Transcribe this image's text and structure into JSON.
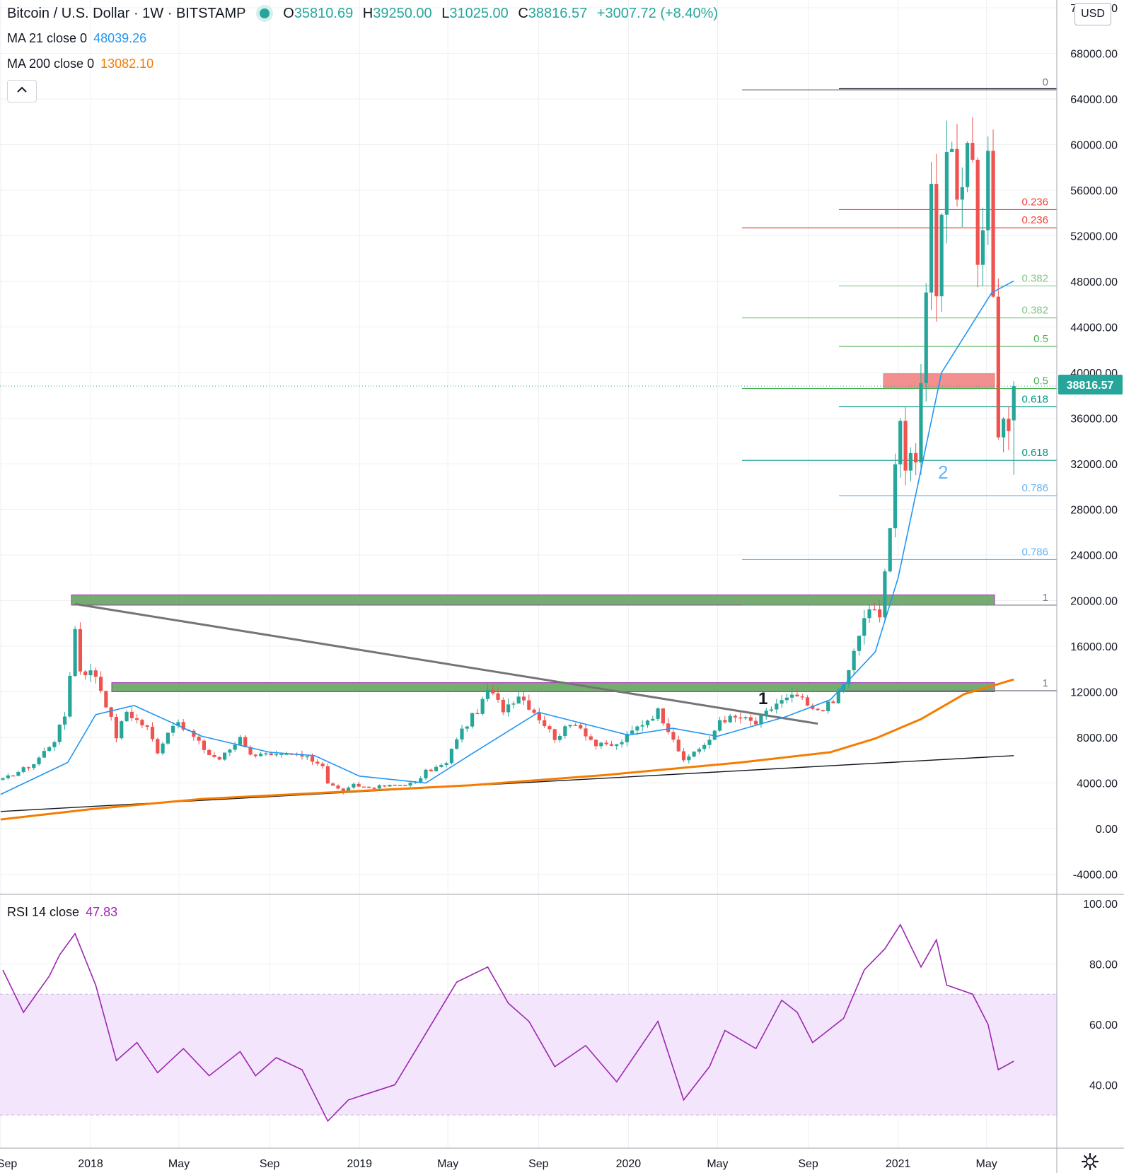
{
  "header": {
    "symbol": "Bitcoin / U.S. Dollar",
    "interval": "1W",
    "exchange": "BITSTAMP",
    "ohlc": {
      "o_label": "O",
      "o": "35810.69",
      "h_label": "H",
      "h": "39250.00",
      "l_label": "L",
      "l": "31025.00",
      "c_label": "C",
      "c": "38816.57",
      "change": "+3007.72 (+8.40%)"
    },
    "collapse_icon": "chevron-up-icon"
  },
  "indicators": {
    "ma21": {
      "label": "MA 21 close 0",
      "value": "48039.26",
      "color": "#2196f3"
    },
    "ma200": {
      "label": "MA 200 close 0",
      "value": "13082.10",
      "color": "#f57c00"
    },
    "rsi": {
      "label": "RSI 14 close",
      "value": "47.83",
      "color": "#9c27b0"
    }
  },
  "price_axis": {
    "currency": "USD",
    "ticks": [
      "72000.00",
      "68000.00",
      "64000.00",
      "60000.00",
      "56000.00",
      "52000.00",
      "48000.00",
      "44000.00",
      "40000.00",
      "36000.00",
      "32000.00",
      "28000.00",
      "24000.00",
      "20000.00",
      "16000.00",
      "12000.00",
      "8000.00",
      "4000.00",
      "0.00",
      "-4000.00"
    ],
    "last_price_label": "38816.57"
  },
  "rsi_axis": {
    "ticks": [
      "100.00",
      "80.00",
      "60.00",
      "40.00"
    ]
  },
  "time_axis": {
    "labels": [
      "Sep",
      "2018",
      "May",
      "Sep",
      "2019",
      "May",
      "Sep",
      "2020",
      "May",
      "Sep",
      "2021",
      "May"
    ]
  },
  "annotations": {
    "wave_1": "1",
    "wave_2": "2",
    "fib_set_a": [
      "0",
      "0.236",
      "0.382",
      "0.5",
      "0.618",
      "0.786",
      "1"
    ],
    "fib_set_b": [
      "0.236",
      "0.382",
      "0.5",
      "0.618",
      "0.786",
      "1"
    ]
  },
  "colors": {
    "up": "#26a69a",
    "down": "#ef5350",
    "grid": "#eef0f3",
    "rsi_band": "#f3e5fc",
    "support_zone": "#6ea96a",
    "resistance_zone": "#f28b8b"
  },
  "chart_data": {
    "type": "candlestick",
    "title": "Bitcoin / U.S. Dollar, 1W, BITSTAMP",
    "timeframe": "1W",
    "x_range": [
      "2017-09",
      "2021-06"
    ],
    "ylim": [
      -6000,
      72000
    ],
    "grid": true,
    "last_close": 38816.57,
    "weekly_close_path": [
      [
        "2017-09-04",
        4300
      ],
      [
        "2017-10-16",
        5700
      ],
      [
        "2017-11-13",
        7800
      ],
      [
        "2017-11-27",
        9900
      ],
      [
        "2017-12-11",
        17500
      ],
      [
        "2017-12-18",
        14000
      ],
      [
        "2018-01-08",
        13500
      ],
      [
        "2018-01-22",
        11000
      ],
      [
        "2018-02-05",
        8100
      ],
      [
        "2018-02-19",
        10300
      ],
      [
        "2018-03-05",
        9500
      ],
      [
        "2018-03-19",
        8800
      ],
      [
        "2018-04-02",
        6800
      ],
      [
        "2018-04-23",
        9300
      ],
      [
        "2018-05-14",
        8500
      ],
      [
        "2018-05-28",
        7500
      ],
      [
        "2018-06-11",
        6500
      ],
      [
        "2018-06-25",
        6100
      ],
      [
        "2018-07-16",
        7400
      ],
      [
        "2018-07-23",
        8200
      ],
      [
        "2018-08-06",
        6400
      ],
      [
        "2018-08-20",
        6700
      ],
      [
        "2018-09-03",
        6300
      ],
      [
        "2018-10-08",
        6500
      ],
      [
        "2018-11-12",
        5600
      ],
      [
        "2018-11-19",
        4000
      ],
      [
        "2018-12-10",
        3200
      ],
      [
        "2018-12-24",
        3800
      ],
      [
        "2019-01-14",
        3600
      ],
      [
        "2019-02-18",
        3800
      ],
      [
        "2019-03-18",
        4000
      ],
      [
        "2019-04-01",
        5000
      ],
      [
        "2019-04-29",
        5700
      ],
      [
        "2019-05-13",
        8000
      ],
      [
        "2019-06-17",
        11000
      ],
      [
        "2019-06-24",
        12200
      ],
      [
        "2019-07-15",
        10500
      ],
      [
        "2019-08-05",
        11800
      ],
      [
        "2019-08-26",
        10300
      ],
      [
        "2019-09-23",
        8000
      ],
      [
        "2019-10-21",
        9400
      ],
      [
        "2019-11-18",
        7300
      ],
      [
        "2019-12-16",
        7300
      ],
      [
        "2020-01-13",
        8900
      ],
      [
        "2020-02-10",
        10300
      ],
      [
        "2020-03-02",
        8000
      ],
      [
        "2020-03-16",
        5800
      ],
      [
        "2020-03-30",
        6800
      ],
      [
        "2020-04-20",
        7600
      ],
      [
        "2020-05-04",
        9600
      ],
      [
        "2020-06-01",
        9700
      ],
      [
        "2020-06-22",
        9200
      ],
      [
        "2020-07-20",
        11000
      ],
      [
        "2020-08-17",
        11600
      ],
      [
        "2020-09-07",
        10300
      ],
      [
        "2020-10-05",
        11000
      ],
      [
        "2020-10-26",
        13700
      ],
      [
        "2020-11-16",
        18600
      ],
      [
        "2020-12-07",
        19200
      ],
      [
        "2020-12-21",
        26500
      ],
      [
        "2021-01-04",
        35500
      ],
      [
        "2021-01-11",
        32300
      ],
      [
        "2021-01-25",
        33000
      ],
      [
        "2021-02-08",
        47100
      ],
      [
        "2021-02-15",
        57500
      ],
      [
        "2021-02-22",
        45200
      ],
      [
        "2021-03-08",
        59500
      ],
      [
        "2021-03-22",
        55800
      ],
      [
        "2021-04-05",
        59700
      ],
      [
        "2021-04-12",
        60000
      ],
      [
        "2021-04-19",
        48800
      ],
      [
        "2021-05-03",
        58000
      ],
      [
        "2021-05-10",
        46500
      ],
      [
        "2021-05-17",
        34700
      ],
      [
        "2021-05-31",
        35800
      ],
      [
        "2021-06-07",
        38816.57
      ]
    ],
    "series": [
      {
        "name": "MA 21 close 0",
        "color": "#2196f3",
        "points": [
          [
            "2017-09-01",
            3000
          ],
          [
            "2017-12-01",
            5800
          ],
          [
            "2018-01-08",
            10000
          ],
          [
            "2018-03-01",
            10800
          ],
          [
            "2018-06-01",
            8100
          ],
          [
            "2018-09-01",
            6700
          ],
          [
            "2018-11-01",
            6400
          ],
          [
            "2019-01-01",
            4600
          ],
          [
            "2019-04-01",
            4000
          ],
          [
            "2019-06-01",
            6500
          ],
          [
            "2019-09-01",
            10200
          ],
          [
            "2019-11-01",
            9200
          ],
          [
            "2020-01-01",
            8200
          ],
          [
            "2020-03-01",
            8800
          ],
          [
            "2020-05-01",
            8100
          ],
          [
            "2020-08-01",
            9800
          ],
          [
            "2020-10-01",
            11300
          ],
          [
            "2020-12-01",
            15500
          ],
          [
            "2021-01-01",
            22000
          ],
          [
            "2021-03-01",
            40000
          ],
          [
            "2021-05-08",
            47000
          ],
          [
            "2021-06-07",
            48039.26
          ]
        ]
      },
      {
        "name": "MA 200 close 0",
        "color": "#f57c00",
        "points": [
          [
            "2017-09-01",
            800
          ],
          [
            "2018-01-01",
            1700
          ],
          [
            "2018-06-01",
            2600
          ],
          [
            "2018-12-01",
            3200
          ],
          [
            "2019-06-01",
            3800
          ],
          [
            "2019-12-01",
            4700
          ],
          [
            "2020-06-01",
            5800
          ],
          [
            "2020-10-01",
            6700
          ],
          [
            "2020-12-01",
            7900
          ],
          [
            "2021-02-01",
            9600
          ],
          [
            "2021-04-01",
            11800
          ],
          [
            "2021-06-07",
            13082.1
          ]
        ]
      },
      {
        "name": "RSI 14 close",
        "color": "#9c27b0",
        "points": [
          [
            "2017-09-04",
            78
          ],
          [
            "2017-10-02",
            64
          ],
          [
            "2017-11-06",
            76
          ],
          [
            "2017-11-20",
            83
          ],
          [
            "2017-12-11",
            90
          ],
          [
            "2018-01-08",
            73
          ],
          [
            "2018-02-05",
            48
          ],
          [
            "2018-03-05",
            54
          ],
          [
            "2018-04-02",
            44
          ],
          [
            "2018-05-07",
            52
          ],
          [
            "2018-06-11",
            43
          ],
          [
            "2018-07-23",
            51
          ],
          [
            "2018-08-13",
            43
          ],
          [
            "2018-09-10",
            49
          ],
          [
            "2018-10-15",
            45
          ],
          [
            "2018-11-19",
            28
          ],
          [
            "2018-12-17",
            35
          ],
          [
            "2019-02-18",
            40
          ],
          [
            "2019-04-01",
            57
          ],
          [
            "2019-05-13",
            74
          ],
          [
            "2019-06-24",
            79
          ],
          [
            "2019-07-22",
            67
          ],
          [
            "2019-08-19",
            61
          ],
          [
            "2019-09-23",
            46
          ],
          [
            "2019-11-04",
            53
          ],
          [
            "2019-12-16",
            41
          ],
          [
            "2020-02-10",
            61
          ],
          [
            "2020-03-16",
            35
          ],
          [
            "2020-04-20",
            46
          ],
          [
            "2020-05-11",
            58
          ],
          [
            "2020-06-22",
            52
          ],
          [
            "2020-07-27",
            68
          ],
          [
            "2020-08-17",
            64
          ],
          [
            "2020-09-07",
            54
          ],
          [
            "2020-10-19",
            62
          ],
          [
            "2020-11-16",
            78
          ],
          [
            "2020-12-14",
            85
          ],
          [
            "2021-01-04",
            93
          ],
          [
            "2021-02-01",
            79
          ],
          [
            "2021-02-22",
            88
          ],
          [
            "2021-03-08",
            73
          ],
          [
            "2021-04-12",
            70
          ],
          [
            "2021-05-03",
            60
          ],
          [
            "2021-05-17",
            45
          ],
          [
            "2021-06-07",
            47.83
          ]
        ]
      }
    ],
    "rsi_ylim": [
      27,
      100
    ],
    "rsi_band": [
      30,
      70
    ],
    "horizontal_zones": [
      {
        "label": "support-zone-20000",
        "from": 19600,
        "to": 20500,
        "color": "#6ea96a"
      },
      {
        "label": "support-zone-12500",
        "from": 12000,
        "to": 12800,
        "color": "#6ea96a"
      },
      {
        "label": "resistance-zone-39000",
        "from": 38600,
        "to": 39900,
        "color": "#f28b8b"
      }
    ],
    "fibonacci_set_a": [
      {
        "level": "0",
        "price": 64800
      },
      {
        "level": "0.236",
        "price": 52700
      },
      {
        "level": "0.382",
        "price": 44800
      },
      {
        "level": "0.5",
        "price": 38600
      },
      {
        "level": "0.618",
        "price": 32300
      },
      {
        "level": "0.786",
        "price": 23600
      },
      {
        "level": "1",
        "price": 19600
      }
    ],
    "fibonacci_set_b": [
      {
        "level": "0.236",
        "price": 54300
      },
      {
        "level": "0.382",
        "price": 47600
      },
      {
        "level": "0.5",
        "price": 42300
      },
      {
        "level": "0.618",
        "price": 37000
      },
      {
        "level": "0.786",
        "price": 29200
      },
      {
        "level": "1",
        "price": 12100
      }
    ],
    "trendlines": [
      {
        "label": "descending-resistance",
        "from": [
          "2017-12-11",
          19700
        ],
        "to": [
          "2020-09-14",
          9200
        ]
      },
      {
        "label": "ascending-support",
        "from": [
          "2017-09-01",
          1500
        ],
        "to": [
          "2021-06-07",
          6400
        ]
      }
    ]
  }
}
